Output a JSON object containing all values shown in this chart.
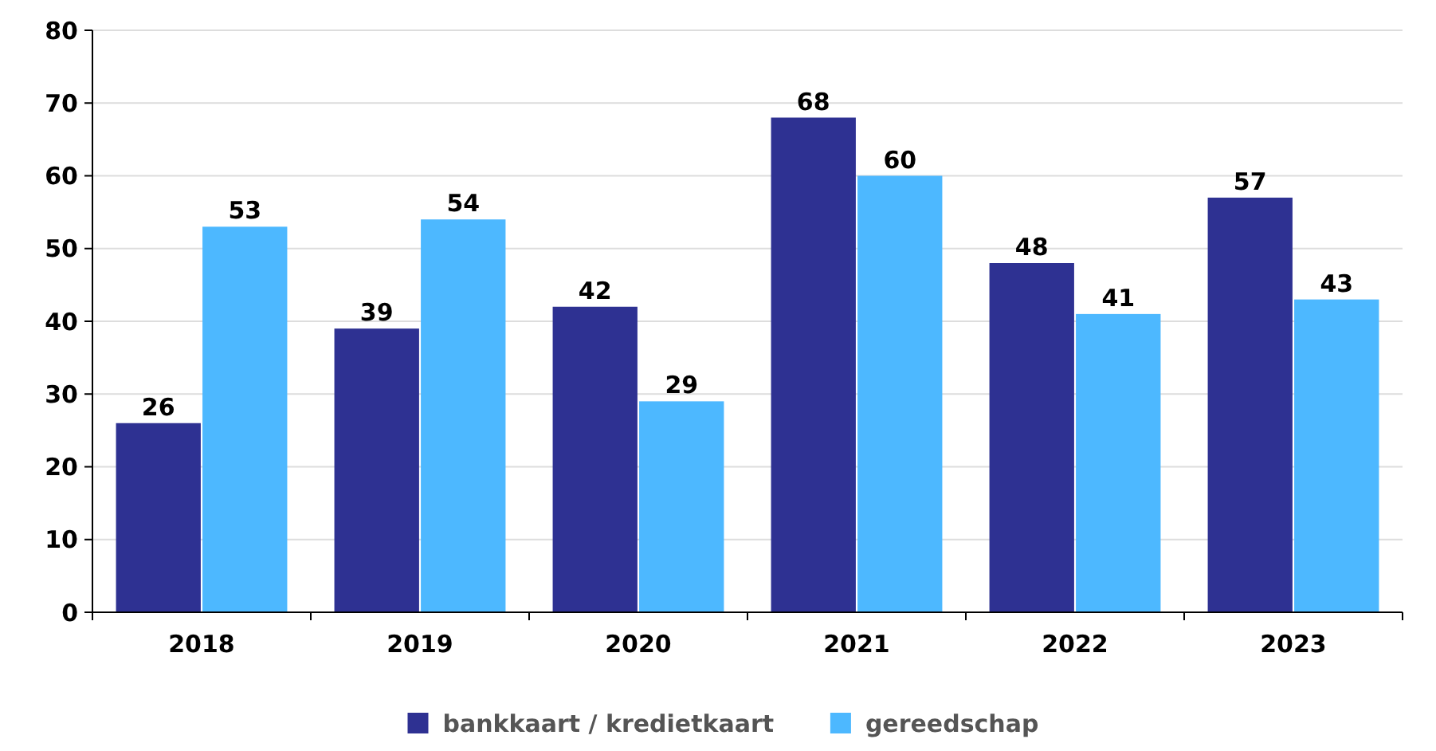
{
  "chart_data": {
    "type": "bar",
    "categories": [
      "2018",
      "2019",
      "2020",
      "2021",
      "2022",
      "2023"
    ],
    "series": [
      {
        "name": "bankkaart / kredietkaart",
        "color": "#2e3192",
        "values": [
          26,
          39,
          42,
          68,
          48,
          57
        ]
      },
      {
        "name": "gereedschap",
        "color": "#4db8ff",
        "values": [
          53,
          54,
          29,
          60,
          41,
          43
        ]
      }
    ],
    "ylim": [
      0,
      80
    ],
    "yticks": [
      0,
      10,
      20,
      30,
      40,
      50,
      60,
      70,
      80
    ],
    "grid": "y",
    "data_labels": true,
    "legend": "bottom"
  }
}
